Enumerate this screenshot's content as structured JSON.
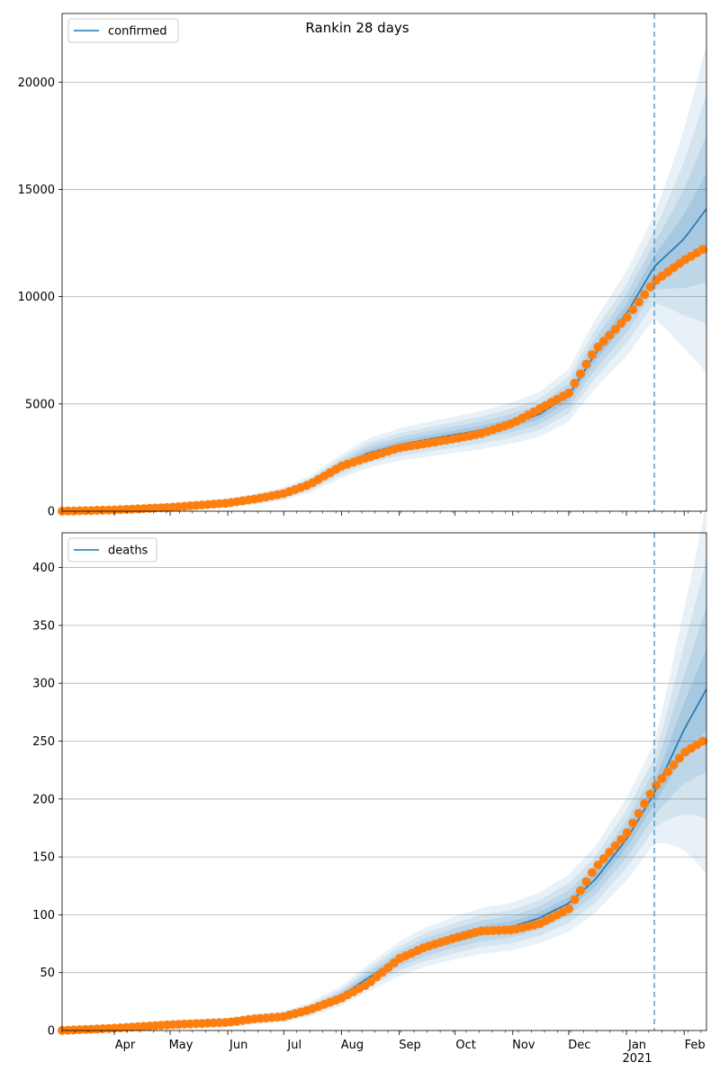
{
  "chart_data": [
    {
      "type": "line",
      "title": "Rankin 28 days",
      "legend": {
        "label": "confirmed",
        "placement": "top-left"
      },
      "ylim": [
        0,
        23200
      ],
      "yticks": [
        0,
        5000,
        10000,
        15000,
        20000
      ],
      "xlim": [
        "2020-03-04",
        "2021-02-13"
      ],
      "grid": "horizontal",
      "forecast_start": "2021-01-16",
      "colors": {
        "model": "#1f77b4",
        "observed": "#ff7f0e",
        "band": "#1f77b4",
        "vline": "#1f77b4"
      },
      "series": [
        {
          "role": "model",
          "x": [
            "2020-03-04",
            "2020-04-01",
            "2020-05-01",
            "2020-06-01",
            "2020-06-15",
            "2020-07-01",
            "2020-07-15",
            "2020-08-01",
            "2020-08-15",
            "2020-09-01",
            "2020-09-15",
            "2020-10-01",
            "2020-10-15",
            "2020-11-01",
            "2020-11-15",
            "2020-12-01",
            "2020-12-15",
            "2021-01-01",
            "2021-01-16",
            "2021-02-01",
            "2021-02-13"
          ],
          "values": [
            0,
            60,
            180,
            380,
            560,
            820,
            1250,
            2100,
            2700,
            3100,
            3330,
            3570,
            3780,
            4130,
            4500,
            5400,
            7300,
            9200,
            11400,
            12700,
            14100
          ]
        },
        {
          "role": "observed",
          "x": [
            "2020-03-04",
            "2020-04-01",
            "2020-05-01",
            "2020-06-01",
            "2020-06-15",
            "2020-07-01",
            "2020-07-15",
            "2020-08-01",
            "2020-08-15",
            "2020-09-01",
            "2020-09-15",
            "2020-10-01",
            "2020-10-15",
            "2020-11-01",
            "2020-11-15",
            "2020-12-01",
            "2020-12-15",
            "2021-01-01",
            "2021-01-16",
            "2021-02-01",
            "2021-02-13"
          ],
          "values": [
            0,
            60,
            180,
            380,
            560,
            820,
            1250,
            2100,
            2500,
            2950,
            3150,
            3380,
            3620,
            4100,
            4750,
            5500,
            7500,
            9000,
            10700,
            11700,
            12300
          ]
        }
      ]
    },
    {
      "type": "line",
      "legend": {
        "label": "deaths",
        "placement": "top-left"
      },
      "ylim": [
        0,
        430
      ],
      "yticks": [
        0,
        50,
        100,
        150,
        200,
        250,
        300,
        350,
        400
      ],
      "xlim": [
        "2020-03-04",
        "2021-02-13"
      ],
      "xticklabels": [
        "Apr",
        "May",
        "Jun",
        "Jul",
        "Aug",
        "Sep",
        "Oct",
        "Nov",
        "Dec",
        "Jan\n2021",
        "Feb"
      ],
      "grid": "horizontal",
      "forecast_start": "2021-01-16",
      "colors": {
        "model": "#1f77b4",
        "observed": "#ff7f0e",
        "band": "#1f77b4",
        "vline": "#1f77b4"
      },
      "series": [
        {
          "role": "model",
          "x": [
            "2020-03-04",
            "2020-04-01",
            "2020-05-01",
            "2020-06-01",
            "2020-06-15",
            "2020-07-01",
            "2020-07-15",
            "2020-08-01",
            "2020-08-15",
            "2020-09-01",
            "2020-09-15",
            "2020-10-01",
            "2020-10-15",
            "2020-11-01",
            "2020-11-15",
            "2020-12-01",
            "2020-12-15",
            "2021-01-01",
            "2021-01-16",
            "2021-02-01",
            "2021-02-13"
          ],
          "values": [
            0,
            2,
            5,
            7,
            10,
            12,
            18,
            30,
            45,
            62,
            72,
            80,
            86,
            90,
            97,
            110,
            130,
            165,
            205,
            260,
            295
          ]
        },
        {
          "role": "observed",
          "x": [
            "2020-03-04",
            "2020-04-01",
            "2020-05-01",
            "2020-06-01",
            "2020-06-15",
            "2020-07-01",
            "2020-07-15",
            "2020-08-01",
            "2020-08-15",
            "2020-09-01",
            "2020-09-15",
            "2020-10-01",
            "2020-10-15",
            "2020-11-01",
            "2020-11-15",
            "2020-12-01",
            "2020-12-15",
            "2021-01-01",
            "2021-01-16",
            "2021-02-01",
            "2021-02-13"
          ],
          "values": [
            0,
            2,
            5,
            7,
            10,
            12,
            18,
            28,
            40,
            62,
            72,
            80,
            86,
            87,
            92,
            105,
            140,
            170,
            210,
            240,
            252
          ]
        }
      ]
    }
  ]
}
